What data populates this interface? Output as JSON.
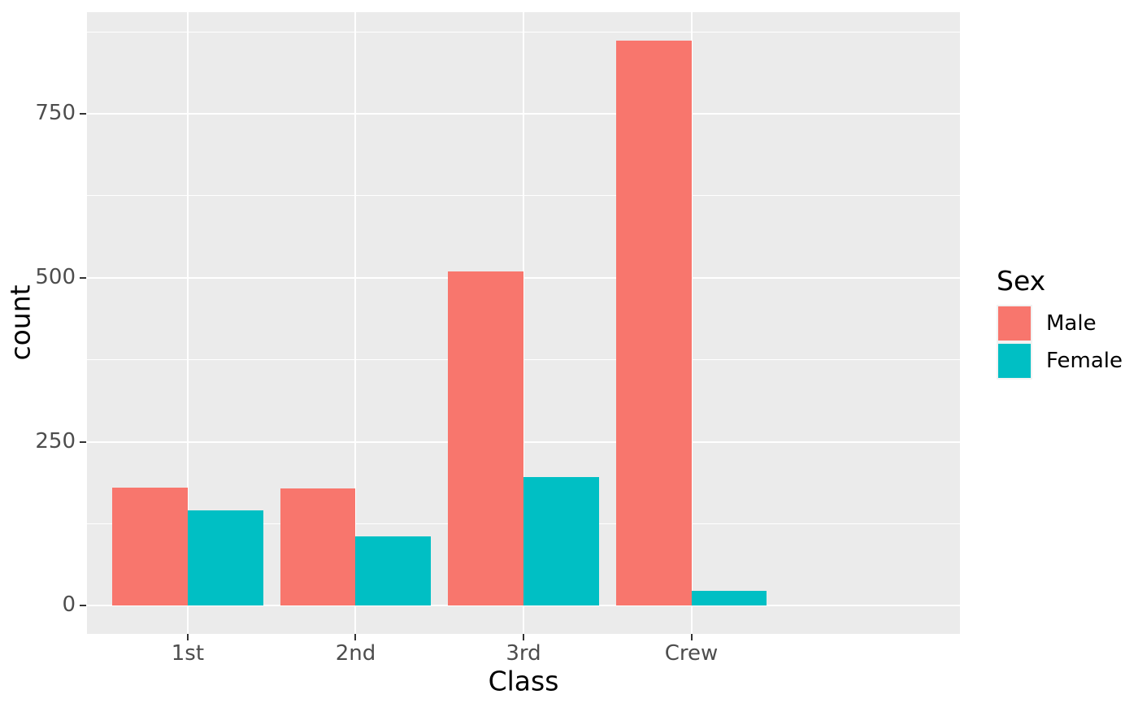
{
  "chart_data": {
    "type": "bar",
    "title": "",
    "categories": [
      "1st",
      "2nd",
      "3rd",
      "Crew"
    ],
    "series": [
      {
        "name": "Male",
        "color": "#F8766D",
        "values": [
          180,
          179,
          510,
          862
        ]
      },
      {
        "name": "Female",
        "color": "#00BFC4",
        "values": [
          145,
          106,
          196,
          23
        ]
      }
    ],
    "xlabel": "Class",
    "ylabel": "count",
    "y_ticks": [
      0,
      250,
      500,
      750
    ],
    "y_minor_ticks": [
      125,
      375,
      625,
      875
    ],
    "ylim": [
      -43.1,
      905.1
    ],
    "bar_width_units": 0.45,
    "grid": true,
    "legend": {
      "title": "Sex",
      "position": "right"
    },
    "colors": {
      "panel_background": "#EBEBEB",
      "grid_major": "#FFFFFF",
      "grid_minor": "#FFFFFF",
      "tick_mark": "#333333",
      "tick_label": "#4D4D4D",
      "axis_title": "#000000",
      "legend_key_background": "#F2F2F2",
      "figure_background": "#FFFFFF"
    }
  }
}
